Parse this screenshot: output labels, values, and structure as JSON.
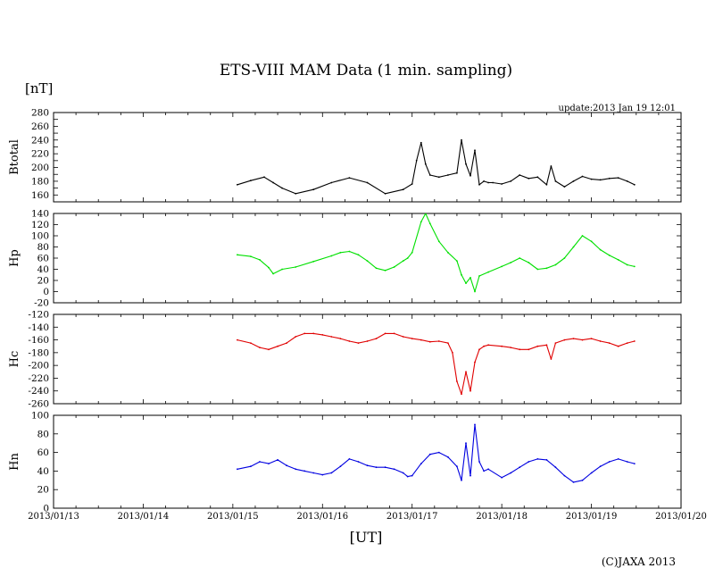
{
  "chart_data": {
    "type": "line",
    "title": "ETS-VIII MAM Data (1 min. sampling)",
    "unit_label": "[nT]",
    "update_text": "update:2013 Jan 19 12:01",
    "xlabel": "[UT]",
    "copyright": "(C)JAXA 2013",
    "x_tick_labels": [
      "2013/01/13",
      "2013/01/14",
      "2013/01/15",
      "2013/01/16",
      "2013/01/17",
      "2013/01/18",
      "2013/01/19",
      "2013/01/20"
    ],
    "x_unit": "days since 2013/01/13 00:00 UT",
    "xlim": [
      0,
      7
    ],
    "panels": [
      {
        "name": "Btotal",
        "label": "Btotal",
        "color": "#000000",
        "ylim": [
          150,
          280
        ],
        "yticks": [
          150,
          160,
          170,
          180,
          190,
          200,
          210,
          220,
          230,
          240,
          250,
          260,
          270,
          280
        ],
        "ytick_labels": [
          "",
          "160",
          "",
          "180",
          "",
          "200",
          "",
          "220",
          "",
          "240",
          "",
          "260",
          "",
          "280"
        ],
        "x": [
          2.05,
          2.2,
          2.35,
          2.45,
          2.55,
          2.7,
          2.9,
          3.1,
          3.3,
          3.5,
          3.7,
          3.9,
          4.0,
          4.05,
          4.1,
          4.15,
          4.2,
          4.3,
          4.4,
          4.5,
          4.55,
          4.6,
          4.65,
          4.7,
          4.75,
          4.8,
          4.85,
          4.9,
          5.0,
          5.1,
          5.2,
          5.3,
          5.4,
          5.5,
          5.55,
          5.6,
          5.7,
          5.8,
          5.9,
          6.0,
          6.1,
          6.2,
          6.3,
          6.4,
          6.48
        ],
        "values": [
          175,
          181,
          186,
          178,
          170,
          162,
          168,
          178,
          185,
          178,
          162,
          168,
          176,
          210,
          236,
          205,
          189,
          186,
          189,
          192,
          240,
          205,
          188,
          225,
          175,
          180,
          178,
          178,
          176,
          180,
          189,
          184,
          186,
          175,
          202,
          180,
          172,
          180,
          187,
          183,
          182,
          184,
          185,
          180,
          175
        ]
      },
      {
        "name": "Hp",
        "label": "Hp",
        "color": "#00e000",
        "ylim": [
          -20,
          140
        ],
        "yticks": [
          -20,
          0,
          20,
          40,
          60,
          80,
          100,
          120,
          140
        ],
        "ytick_labels": [
          "-20",
          "0",
          "20",
          "40",
          "60",
          "80",
          "100",
          "120",
          "140"
        ],
        "x": [
          2.05,
          2.2,
          2.3,
          2.4,
          2.45,
          2.55,
          2.7,
          2.9,
          3.1,
          3.2,
          3.3,
          3.4,
          3.5,
          3.6,
          3.7,
          3.8,
          3.9,
          3.95,
          4.0,
          4.1,
          4.15,
          4.2,
          4.3,
          4.4,
          4.5,
          4.55,
          4.6,
          4.65,
          4.7,
          4.75,
          4.85,
          5.0,
          5.1,
          5.2,
          5.3,
          5.4,
          5.5,
          5.6,
          5.7,
          5.8,
          5.9,
          6.0,
          6.1,
          6.2,
          6.3,
          6.4,
          6.48
        ],
        "values": [
          66,
          63,
          57,
          43,
          32,
          40,
          44,
          54,
          64,
          70,
          72,
          66,
          55,
          42,
          38,
          44,
          55,
          60,
          70,
          125,
          140,
          122,
          90,
          70,
          55,
          30,
          15,
          25,
          0,
          28,
          35,
          45,
          52,
          60,
          52,
          40,
          42,
          48,
          60,
          80,
          100,
          90,
          75,
          65,
          57,
          48,
          45
        ]
      },
      {
        "name": "Hc",
        "label": "Hc",
        "color": "#e00000",
        "ylim": [
          -260,
          -120
        ],
        "yticks": [
          -260,
          -240,
          -220,
          -200,
          -180,
          -160,
          -140,
          -120
        ],
        "ytick_labels": [
          "-260",
          "-240",
          "-220",
          "-200",
          "-180",
          "-160",
          "-140",
          "-120"
        ],
        "x": [
          2.05,
          2.2,
          2.3,
          2.4,
          2.5,
          2.6,
          2.7,
          2.8,
          2.9,
          3.0,
          3.1,
          3.2,
          3.3,
          3.4,
          3.5,
          3.6,
          3.7,
          3.8,
          3.9,
          4.0,
          4.1,
          4.2,
          4.3,
          4.4,
          4.45,
          4.5,
          4.55,
          4.6,
          4.65,
          4.7,
          4.75,
          4.8,
          4.85,
          5.0,
          5.1,
          5.2,
          5.3,
          5.4,
          5.5,
          5.55,
          5.6,
          5.7,
          5.8,
          5.9,
          6.0,
          6.1,
          6.2,
          6.3,
          6.4,
          6.48
        ],
        "values": [
          -160,
          -165,
          -172,
          -175,
          -170,
          -165,
          -155,
          -150,
          -150,
          -152,
          -155,
          -158,
          -162,
          -165,
          -162,
          -158,
          -150,
          -150,
          -155,
          -158,
          -160,
          -163,
          -162,
          -165,
          -180,
          -225,
          -245,
          -210,
          -240,
          -195,
          -175,
          -170,
          -168,
          -170,
          -172,
          -175,
          -175,
          -170,
          -168,
          -190,
          -165,
          -160,
          -158,
          -160,
          -158,
          -162,
          -165,
          -170,
          -165,
          -162
        ]
      },
      {
        "name": "Hn",
        "label": "Hn",
        "color": "#0000e0",
        "ylim": [
          0,
          100
        ],
        "yticks": [
          0,
          20,
          40,
          60,
          80,
          100
        ],
        "ytick_labels": [
          "0",
          "20",
          "40",
          "60",
          "80",
          "100"
        ],
        "x": [
          2.05,
          2.2,
          2.3,
          2.4,
          2.5,
          2.6,
          2.7,
          2.8,
          2.9,
          3.0,
          3.1,
          3.2,
          3.3,
          3.4,
          3.5,
          3.6,
          3.7,
          3.8,
          3.9,
          3.95,
          4.0,
          4.1,
          4.2,
          4.3,
          4.4,
          4.5,
          4.55,
          4.6,
          4.65,
          4.7,
          4.75,
          4.8,
          4.85,
          5.0,
          5.1,
          5.2,
          5.3,
          5.4,
          5.5,
          5.6,
          5.7,
          5.8,
          5.9,
          6.0,
          6.1,
          6.2,
          6.3,
          6.4,
          6.48
        ],
        "values": [
          42,
          45,
          50,
          48,
          52,
          46,
          42,
          40,
          38,
          36,
          38,
          45,
          53,
          50,
          46,
          44,
          44,
          42,
          38,
          34,
          35,
          48,
          58,
          60,
          55,
          45,
          30,
          70,
          35,
          90,
          50,
          40,
          42,
          33,
          38,
          44,
          50,
          53,
          52,
          44,
          35,
          28,
          30,
          38,
          45,
          50,
          53,
          50,
          48
        ]
      }
    ]
  }
}
